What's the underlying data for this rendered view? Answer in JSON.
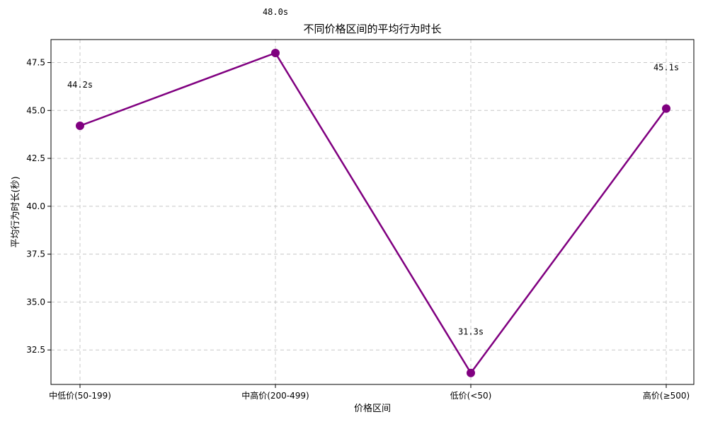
{
  "chart_data": {
    "type": "line",
    "title": "不同价格区间的平均行为时长",
    "xlabel": "价格区间",
    "ylabel": "平均行为时长(秒)",
    "categories": [
      "中低价(50-199)",
      "中高价(200-499)",
      "低价(<50)",
      "高价(≥500)"
    ],
    "series": [
      {
        "values": [
          44.2,
          48.0,
          31.3,
          45.1
        ],
        "data_labels": [
          "44.2s",
          "48.0s",
          "31.3s",
          "45.1s"
        ],
        "color": "#800080"
      }
    ],
    "ylim": [
      30.7,
      48.7
    ],
    "yticks": [
      32.5,
      35.0,
      37.5,
      40.0,
      42.5,
      45.0,
      47.5
    ],
    "ytick_labels": [
      "32.5",
      "35.0",
      "37.5",
      "40.0",
      "42.5",
      "45.0",
      "47.5"
    ],
    "grid": true
  }
}
